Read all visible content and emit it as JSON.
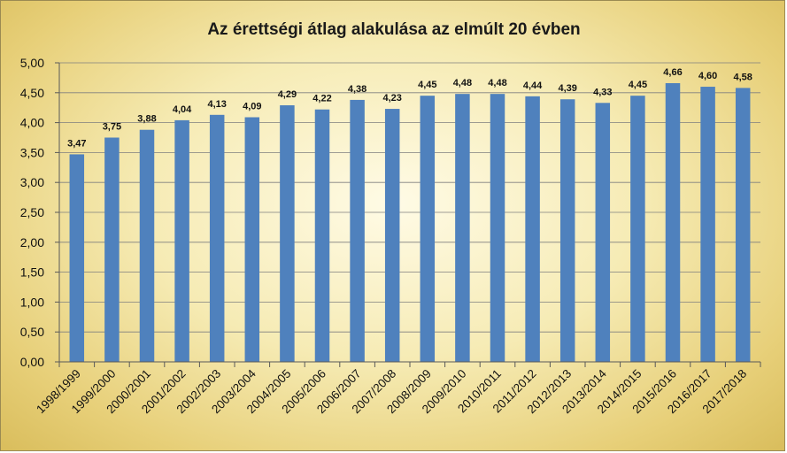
{
  "chart_data": {
    "type": "bar",
    "title": "Az érettségi átlag alakulása az elmúlt 20 évben",
    "xlabel": "",
    "ylabel": "",
    "categories": [
      "1998/1999",
      "1999/2000",
      "2000/2001",
      "2001/2002",
      "2002/2003",
      "2003/2004",
      "2004/2005",
      "2005/2006",
      "2006/2007",
      "2007/2008",
      "2008/2009",
      "2009/2010",
      "2010/2011",
      "2011/2012",
      "2012/2013",
      "2013/2014",
      "2014/2015",
      "2015/2016",
      "2016/2017",
      "2017/2018"
    ],
    "values": [
      3.47,
      3.75,
      3.88,
      4.04,
      4.13,
      4.09,
      4.29,
      4.22,
      4.38,
      4.23,
      4.45,
      4.48,
      4.48,
      4.44,
      4.39,
      4.33,
      4.45,
      4.66,
      4.6,
      4.58
    ],
    "data_labels": [
      "3,47",
      "3,75",
      "3,88",
      "4,04",
      "4,13",
      "4,09",
      "4,29",
      "4,22",
      "4,38",
      "4,23",
      "4,45",
      "4,48",
      "4,48",
      "4,44",
      "4,39",
      "4,33",
      "4,45",
      "4,66",
      "4,60",
      "4,58"
    ],
    "ylim": [
      0,
      5
    ],
    "yticks": [
      "0,00",
      "0,50",
      "1,00",
      "1,50",
      "2,00",
      "2,50",
      "3,00",
      "3,50",
      "4,00",
      "4,50",
      "5,00"
    ],
    "grid": true,
    "legend": "none",
    "bar_color": "#4f81bd",
    "gridline_color": "#7f7f7f",
    "background": "#f6ebb4"
  }
}
